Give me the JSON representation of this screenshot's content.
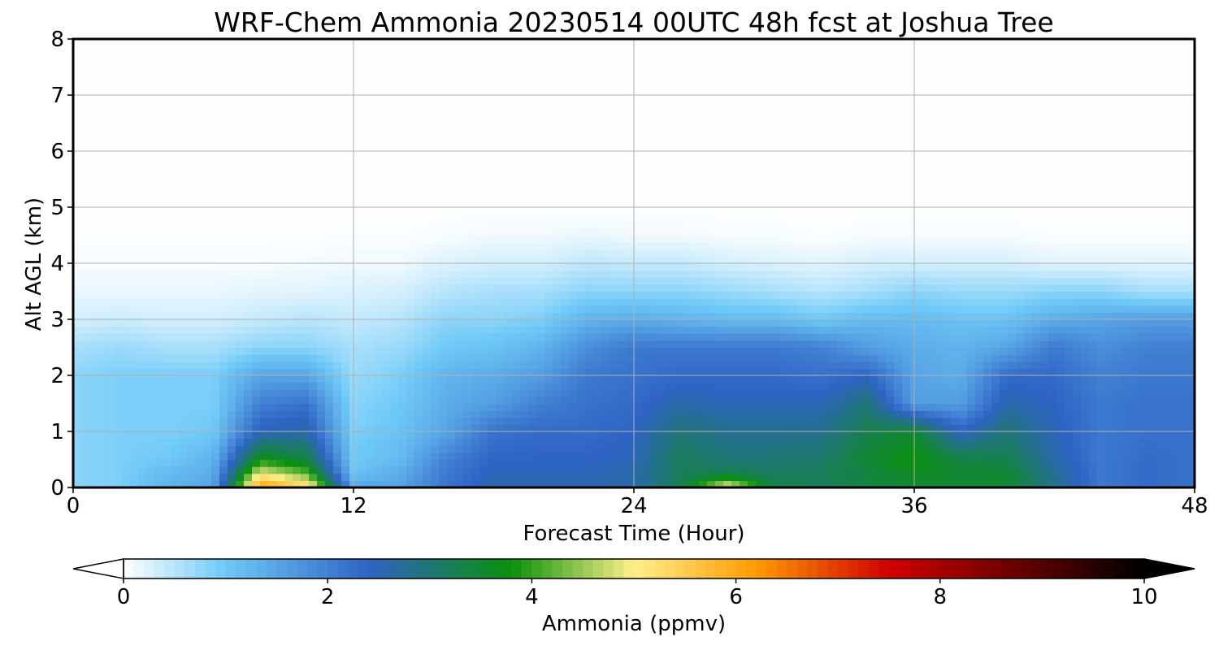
{
  "chart_data": {
    "type": "heatmap",
    "title": "WRF-Chem Ammonia  20230514 00UTC 48h fcst at Joshua Tree",
    "xlabel": "Forecast Time (Hour)",
    "ylabel": "Alt AGL (km)",
    "xlim": [
      0,
      48
    ],
    "ylim": [
      0,
      8
    ],
    "x_ticks": [
      "0",
      "12",
      "24",
      "36",
      "48"
    ],
    "y_ticks": [
      "0",
      "1",
      "2",
      "3",
      "4",
      "5",
      "6",
      "7",
      "8"
    ],
    "grid": true,
    "hours": [
      0,
      2,
      4,
      6,
      8,
      10,
      12,
      14,
      16,
      18,
      20,
      22,
      24,
      26,
      28,
      30,
      32,
      34,
      36,
      38,
      40,
      42,
      44,
      46,
      48
    ],
    "altitudes_km": [
      0,
      0.25,
      0.5,
      1,
      1.5,
      2,
      2.5,
      3,
      3.5,
      4,
      4.5,
      5,
      6,
      8
    ],
    "ammonia_ppmv_by_hour": [
      [
        0.8,
        0.8,
        0.8,
        0.8,
        0.8,
        0.8,
        0.6,
        0.3,
        0.15,
        0.05,
        0.02,
        0.01,
        0.01,
        0.01
      ],
      [
        0.9,
        0.9,
        0.9,
        0.9,
        0.9,
        0.9,
        0.7,
        0.35,
        0.15,
        0.05,
        0.02,
        0.01,
        0.01,
        0.01
      ],
      [
        1.3,
        1.2,
        1.0,
        0.9,
        0.9,
        0.9,
        0.6,
        0.3,
        0.15,
        0.05,
        0.02,
        0.01,
        0.01,
        0.01
      ],
      [
        1.5,
        1.4,
        1.3,
        1.0,
        0.9,
        0.9,
        0.6,
        0.3,
        0.15,
        0.05,
        0.02,
        0.01,
        0.01,
        0.01
      ],
      [
        6.2,
        5.0,
        3.8,
        2.5,
        2.0,
        1.5,
        0.8,
        0.4,
        0.2,
        0.05,
        0.02,
        0.01,
        0.01,
        0.01
      ],
      [
        5.5,
        4.2,
        3.4,
        2.6,
        2.2,
        1.5,
        0.8,
        0.5,
        0.2,
        0.08,
        0.02,
        0.01,
        0.01,
        0.01
      ],
      [
        1.5,
        1.1,
        1.0,
        0.9,
        0.8,
        0.7,
        0.6,
        0.4,
        0.25,
        0.1,
        0.03,
        0.01,
        0.01,
        0.01
      ],
      [
        1.5,
        1.4,
        1.2,
        1.1,
        1.0,
        0.9,
        0.7,
        0.5,
        0.3,
        0.1,
        0.03,
        0.01,
        0.01,
        0.01
      ],
      [
        2.2,
        2.1,
        2.0,
        1.5,
        1.4,
        1.3,
        1.0,
        0.8,
        0.5,
        0.25,
        0.05,
        0.01,
        0.01,
        0.01
      ],
      [
        2.6,
        2.5,
        2.4,
        2.2,
        1.6,
        1.4,
        1.1,
        0.8,
        0.6,
        0.3,
        0.1,
        0.01,
        0.01,
        0.01
      ],
      [
        2.6,
        2.5,
        2.4,
        2.3,
        2.0,
        1.6,
        1.3,
        0.9,
        0.6,
        0.3,
        0.1,
        0.01,
        0.01,
        0.01
      ],
      [
        2.6,
        2.5,
        2.4,
        2.3,
        2.2,
        2.1,
        1.8,
        1.3,
        0.8,
        0.45,
        0.15,
        0.01,
        0.01,
        0.01
      ],
      [
        2.6,
        2.6,
        2.5,
        2.4,
        2.3,
        2.2,
        2.1,
        1.4,
        0.8,
        0.4,
        0.1,
        0.01,
        0.01,
        0.01
      ],
      [
        3.3,
        3.2,
        3.2,
        3.0,
        2.6,
        2.3,
        2.1,
        1.3,
        0.8,
        0.4,
        0.1,
        0.01,
        0.01,
        0.01
      ],
      [
        5.0,
        3.3,
        3.0,
        2.8,
        2.5,
        2.3,
        2.1,
        1.2,
        0.7,
        0.3,
        0.05,
        0.01,
        0.01,
        0.01
      ],
      [
        3.3,
        3.2,
        3.0,
        2.8,
        2.5,
        2.3,
        2.1,
        1.2,
        0.6,
        0.25,
        0.05,
        0.01,
        0.01,
        0.01
      ],
      [
        3.2,
        3.2,
        3.1,
        2.8,
        2.5,
        2.2,
        2.0,
        1.0,
        0.5,
        0.2,
        0.03,
        0.01,
        0.01,
        0.01
      ],
      [
        3.4,
        3.4,
        3.5,
        3.3,
        3.0,
        2.4,
        1.6,
        1.2,
        0.6,
        0.3,
        0.05,
        0.01,
        0.01,
        0.01
      ],
      [
        3.5,
        3.6,
        3.8,
        3.5,
        1.6,
        1.5,
        1.4,
        1.2,
        0.8,
        0.3,
        0.05,
        0.01,
        0.01,
        0.01
      ],
      [
        3.5,
        3.5,
        3.4,
        2.4,
        1.6,
        1.4,
        1.3,
        1.1,
        0.7,
        0.3,
        0.05,
        0.01,
        0.01,
        0.01
      ],
      [
        3.5,
        3.5,
        3.3,
        3.0,
        2.6,
        2.3,
        1.5,
        1.1,
        0.7,
        0.3,
        0.05,
        0.01,
        0.01,
        0.01
      ],
      [
        2.8,
        2.8,
        2.6,
        2.5,
        2.4,
        2.3,
        2.1,
        1.4,
        0.8,
        0.2,
        0.03,
        0.01,
        0.01,
        0.01
      ],
      [
        2.1,
        2.1,
        2.1,
        2.1,
        2.1,
        2.0,
        1.8,
        1.5,
        0.8,
        0.2,
        0.03,
        0.01,
        0.01,
        0.01
      ],
      [
        2.3,
        2.3,
        2.3,
        2.2,
        2.2,
        2.1,
        2.0,
        1.6,
        0.6,
        0.2,
        0.03,
        0.01,
        0.01,
        0.01
      ],
      [
        2.2,
        2.2,
        2.2,
        2.2,
        2.2,
        2.1,
        2.0,
        1.6,
        0.6,
        0.2,
        0.03,
        0.01,
        0.01,
        0.01
      ]
    ],
    "colorbar": {
      "label": "Ammonia  (ppmv)",
      "ticks": [
        "0",
        "2",
        "4",
        "6",
        "8",
        "10"
      ],
      "range": [
        0,
        10
      ],
      "extend": "both",
      "colors": [
        "#ffffff",
        "#6ec9f7",
        "#2f63c4",
        "#09910b",
        "#fff08a",
        "#ff9a00",
        "#d00000",
        "#000000"
      ],
      "color_stops": [
        0,
        1.0,
        2.4,
        3.8,
        5.0,
        6.2,
        7.5,
        10
      ]
    }
  }
}
